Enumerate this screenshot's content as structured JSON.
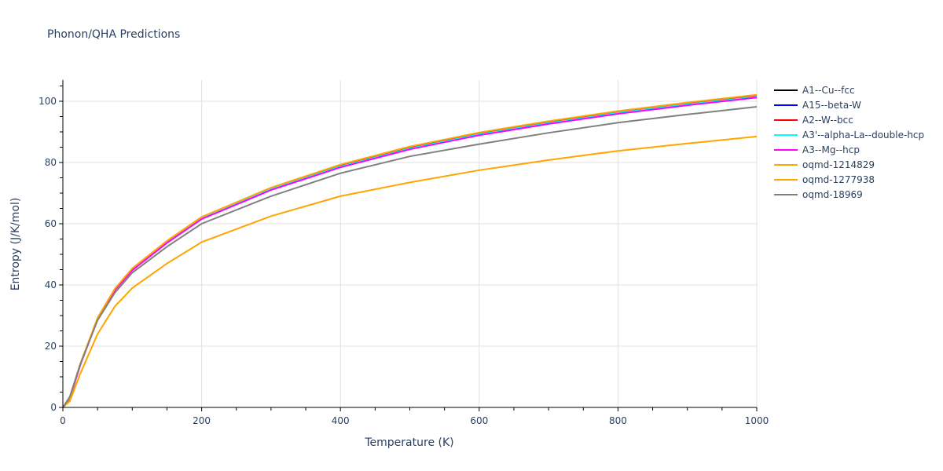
{
  "title": "Phonon/QHA Predictions",
  "chart_data": {
    "type": "line",
    "title": "Phonon/QHA Predictions",
    "xlabel": "Temperature (K)",
    "ylabel": "Entropy (J/K/mol)",
    "xlim": [
      0,
      1000
    ],
    "ylim": [
      0,
      107
    ],
    "x_ticks": [
      0,
      200,
      400,
      600,
      800,
      1000
    ],
    "y_ticks": [
      0,
      20,
      40,
      60,
      80,
      100
    ],
    "grid": true,
    "legend_position": "right",
    "x": [
      0,
      10,
      25,
      50,
      75,
      100,
      150,
      200,
      300,
      400,
      500,
      600,
      700,
      800,
      900,
      1000
    ],
    "series": [
      {
        "name": "A1--Cu--fcc",
        "color": "#000000",
        "values": [
          0,
          3,
          14,
          29,
          38.5,
          45,
          54,
          61.8,
          71.3,
          78.7,
          84.6,
          89.2,
          92.9,
          96.2,
          99,
          101.5
        ]
      },
      {
        "name": "A15--beta-W",
        "color": "#0000ff",
        "values": [
          0,
          3,
          14,
          29,
          38.5,
          45,
          54,
          61.8,
          71.3,
          78.7,
          84.6,
          89.2,
          92.9,
          96.2,
          99,
          101.5
        ]
      },
      {
        "name": "A2--W--bcc",
        "color": "#ff0000",
        "values": [
          0,
          3,
          14,
          29,
          38.6,
          45.2,
          54.2,
          62,
          71.5,
          79,
          84.9,
          89.5,
          93.2,
          96.5,
          99.3,
          101.8
        ]
      },
      {
        "name": "A3'--alpha-La--double-hcp",
        "color": "#00ffff",
        "values": [
          0,
          3,
          14,
          29,
          38.5,
          45,
          54,
          61.8,
          71.3,
          78.7,
          84.6,
          89.2,
          92.9,
          96.2,
          99,
          101.5
        ]
      },
      {
        "name": "A3--Mg--hcp",
        "color": "#ff00ff",
        "values": [
          0,
          2.8,
          13.8,
          28.8,
          38.3,
          44.8,
          53.7,
          61.5,
          71,
          78.4,
          84.3,
          88.9,
          92.6,
          95.9,
          98.7,
          101.2
        ]
      },
      {
        "name": "oqmd-1214829",
        "color": "#ffa500",
        "values": [
          0,
          2,
          11,
          24,
          33,
          39,
          47,
          54,
          62.5,
          69,
          73.5,
          77.5,
          80.8,
          83.8,
          86.2,
          88.5
        ]
      },
      {
        "name": "oqmd-1277938",
        "color": "#ffa500",
        "values": [
          0,
          3.2,
          14.2,
          29.3,
          38.8,
          45.4,
          54.4,
          62.2,
          71.8,
          79.3,
          85.2,
          89.8,
          93.5,
          96.8,
          99.6,
          102.1
        ]
      },
      {
        "name": "oqmd-18969",
        "color": "#808080",
        "values": [
          0,
          3.5,
          14,
          28.5,
          37.5,
          44,
          52.5,
          60,
          69,
          76.5,
          82,
          86,
          89.7,
          93,
          95.7,
          98.2
        ]
      }
    ]
  },
  "legend": {
    "items": [
      {
        "label": "A1--Cu--fcc",
        "color": "#000000"
      },
      {
        "label": "A15--beta-W",
        "color": "#0000ff"
      },
      {
        "label": "A2--W--bcc",
        "color": "#ff0000"
      },
      {
        "label": "A3'--alpha-La--double-hcp",
        "color": "#00ffff"
      },
      {
        "label": "A3--Mg--hcp",
        "color": "#ff00ff"
      },
      {
        "label": "oqmd-1214829",
        "color": "#ffa500"
      },
      {
        "label": "oqmd-1277938",
        "color": "#ffa500"
      },
      {
        "label": "oqmd-18969",
        "color": "#808080"
      }
    ]
  }
}
